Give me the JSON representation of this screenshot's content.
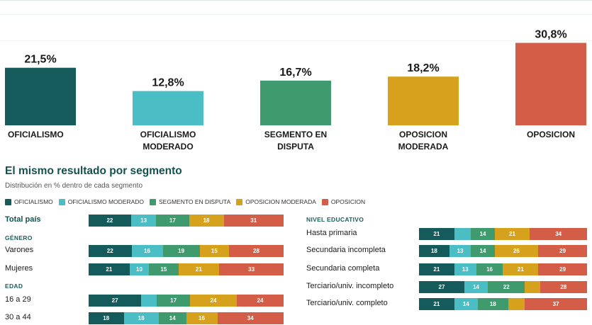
{
  "colors": {
    "oficialismo": "#165b5b",
    "oficialismo_moderado": "#4bbdc4",
    "segmento_en_disputa": "#3f9a6e",
    "oposicion_moderada": "#d6a21d",
    "oposicion": "#d45d47"
  },
  "chart_data": [
    {
      "type": "bar",
      "categories": [
        "OFICIALISMO",
        "OFICIALISMO MODERADO",
        "SEGMENTO EN DISPUTA",
        "OPOSICION MODERADA",
        "OPOSICION"
      ],
      "category_lines": [
        [
          "OFICIALISMO"
        ],
        [
          "OFICIALISMO",
          "MODERADO"
        ],
        [
          "SEGMENTO EN",
          "DISPUTA"
        ],
        [
          "OPOSICION",
          "MODERADA"
        ],
        [
          "OPOSICION"
        ]
      ],
      "values": [
        21.5,
        12.8,
        16.7,
        18.2,
        30.8
      ],
      "value_labels": [
        "21,5%",
        "12,8%",
        "16,7%",
        "18,2%",
        "30,8%"
      ],
      "bar_colors": [
        "#165b5b",
        "#4bbdc4",
        "#3f9a6e",
        "#d6a21d",
        "#d45d47"
      ],
      "ylim": [
        0,
        32
      ]
    },
    {
      "type": "bar",
      "stacked": true,
      "orientation": "horizontal",
      "title": "El mismo resultado por segmento",
      "subtitle": "Distribución en % dentro de cada segmento",
      "series": [
        {
          "name": "OFICIALISMO",
          "color": "#165b5b"
        },
        {
          "name": "OFICIALISMO MODERADO",
          "color": "#4bbdc4"
        },
        {
          "name": "SEGMENTO EN DISPUTA",
          "color": "#3f9a6e"
        },
        {
          "name": "OPOSICION MODERADA",
          "color": "#d6a21d"
        },
        {
          "name": "OPOSICION",
          "color": "#d45d47"
        }
      ],
      "left_column": [
        {
          "kind": "row",
          "label": "Total país",
          "bold": true,
          "values": [
            22,
            13,
            17,
            18,
            31
          ]
        },
        {
          "kind": "header",
          "label": "GÉNERO"
        },
        {
          "kind": "row",
          "label": "Varones",
          "values": [
            22,
            16,
            19,
            15,
            28
          ]
        },
        {
          "kind": "row",
          "label": "Mujeres",
          "values": [
            21,
            10,
            15,
            21,
            33
          ]
        },
        {
          "kind": "header",
          "label": "EDAD"
        },
        {
          "kind": "row",
          "label": "16 a 29",
          "values": [
            27,
            8,
            17,
            24,
            24
          ],
          "hidden_labels": [
            1
          ]
        },
        {
          "kind": "row",
          "label": "30 a 44",
          "values": [
            18,
            18,
            14,
            16,
            34
          ]
        }
      ],
      "right_column": [
        {
          "kind": "header",
          "label": "NIVEL EDUCATIVO"
        },
        {
          "kind": "row",
          "label": "Hasta primaria",
          "values": [
            21,
            10,
            14,
            21,
            34
          ],
          "hidden_labels": [
            1
          ]
        },
        {
          "kind": "row",
          "label": "Secundaria incompleta",
          "values": [
            18,
            13,
            14,
            26,
            29
          ]
        },
        {
          "kind": "row",
          "label": "Secundaria completa",
          "values": [
            21,
            13,
            16,
            21,
            29
          ]
        },
        {
          "kind": "row",
          "label": "Terciario/univ. incompleto",
          "values": [
            27,
            14,
            22,
            9,
            28
          ],
          "hidden_labels": [
            3
          ]
        },
        {
          "kind": "row",
          "label": "Terciario/univ. completo",
          "values": [
            21,
            14,
            18,
            10,
            37
          ],
          "hidden_labels": [
            3
          ]
        }
      ]
    }
  ]
}
